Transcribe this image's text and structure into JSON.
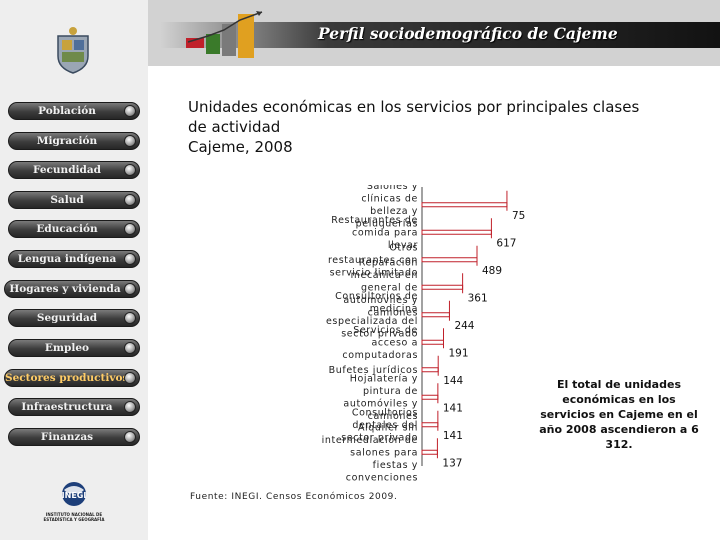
{
  "header": {
    "title": "Perfil sociodemográfico de Cajeme"
  },
  "sidebar": {
    "items": [
      {
        "label": "Población",
        "active": false
      },
      {
        "label": "Migración",
        "active": false
      },
      {
        "label": "Fecundidad",
        "active": false
      },
      {
        "label": "Salud",
        "active": false
      },
      {
        "label": "Educación",
        "active": false
      },
      {
        "label": "Lengua indígena",
        "active": false
      },
      {
        "label": "Hogares y vivienda",
        "active": false
      },
      {
        "label": "Seguridad",
        "active": false
      },
      {
        "label": "Empleo",
        "active": false
      },
      {
        "label": "Sectores productivos",
        "active": true
      },
      {
        "label": "Infraestructura",
        "active": false
      },
      {
        "label": "Finanzas",
        "active": false
      }
    ],
    "logo_text": "INEGI",
    "logo_subtitle": "INSTITUTO NACIONAL DE ESTADÍSTICA Y GEOGRAFÍA"
  },
  "chart_data": {
    "type": "bar",
    "orientation": "horizontal",
    "title_lines": [
      "Unidades económicas en los servicios por principales clases",
      "de actividad",
      "Cajeme, 2008"
    ],
    "categories": [
      "Salones y clínicas de belleza y peluquerías",
      "Restaurantes de comida para llevar",
      "Otros restaurantes con servicio limitado",
      "Reparación mecánica en general de automóviles y camiones",
      "Consultorios de medicina especializada del sector privado",
      "Servicios de acceso a computadoras",
      "Bufetes jurídicos",
      "Hojalatería y pintura de automóviles y camiones",
      "Consultorios dentales del sector privado",
      "Alquiler sin intermediación de salones para fiestas y convenciones"
    ],
    "values": [
      755,
      617,
      489,
      361,
      244,
      191,
      144,
      141,
      141,
      137
    ],
    "bar_color": "#c0202a",
    "xlim": [
      0,
      800
    ]
  },
  "source": "Fuente: INEGI. Censos Económicos 2009.",
  "note": "El total de unidades económicas en los servicios en Cajeme en el año 2008 ascendieron a 6 312."
}
